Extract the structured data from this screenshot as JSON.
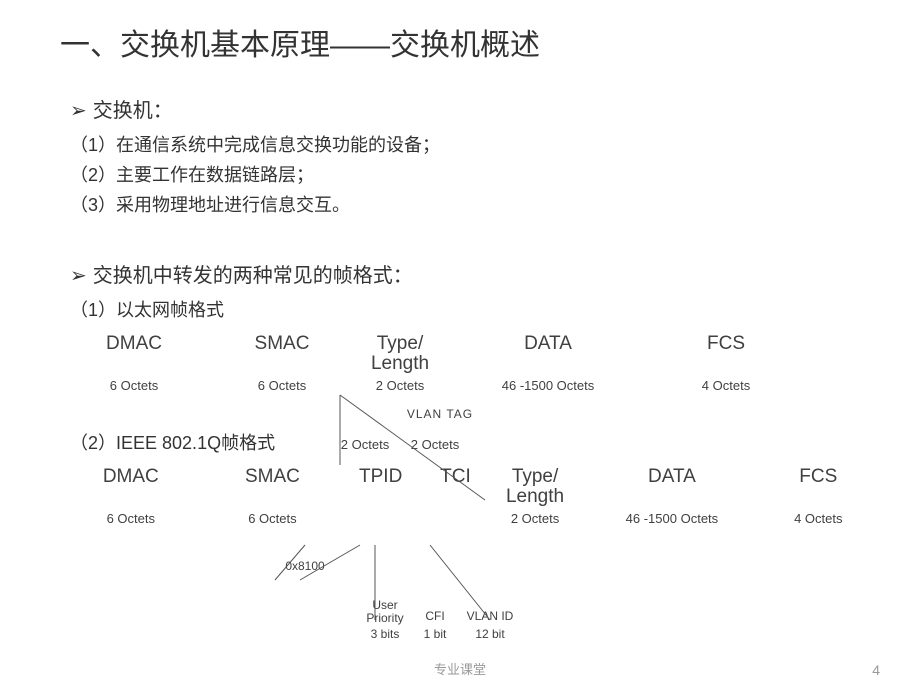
{
  "title": "一、交换机基本原理——交换机概述",
  "bullet1": "交换机：",
  "bullet2": "交换机中转发的两种常见的帧格式：",
  "subs": {
    "s1": "（1）在通信系统中完成信息交换功能的设备；",
    "s2": "（2）主要工作在数据链路层；",
    "s3": "（3）采用物理地址进行信息交互。",
    "s4": "（1）以太网帧格式",
    "s5": "（2）IEEE 802.1Q帧格式"
  },
  "eth": {
    "fields": [
      "DMAC",
      "SMAC",
      "Type/\nLength",
      "DATA",
      "FCS"
    ],
    "sizes": [
      "6 Octets",
      "6 Octets",
      "2 Octets",
      "46 -1500 Octets",
      "4 Octets"
    ],
    "widths": [
      140,
      140,
      80,
      200,
      140
    ]
  },
  "dot1q": {
    "fields": [
      "DMAC",
      "SMAC",
      "TPID",
      "TCI",
      "Type/\nLength",
      "DATA",
      "FCS"
    ],
    "sizes": [
      "6 Octets",
      "6 Octets",
      "",
      "",
      "2 Octets",
      "46 -1500 Octets",
      "4 Octets"
    ],
    "widths": [
      140,
      140,
      70,
      70,
      80,
      190,
      100
    ],
    "tag_sizes": [
      "2 Octets",
      "2 Octets"
    ]
  },
  "anno": {
    "vlan_tag": "VLAN   TAG",
    "tpid_val": "0x8100",
    "tci_fields": [
      "User\nPriority",
      "CFI",
      "VLAN ID"
    ],
    "tci_bits": [
      "3 bits",
      "1 bit",
      "12 bit"
    ]
  },
  "footer": "专业课堂",
  "page": "4",
  "colors": {
    "text": "#404040",
    "line": "#555555",
    "bg": "#ffffff",
    "footer": "#999999"
  }
}
